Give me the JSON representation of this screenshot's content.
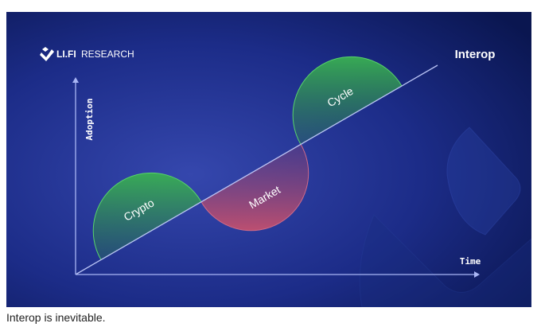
{
  "brand": {
    "logo_bold": "LI.FI",
    "logo_light": "RESEARCH"
  },
  "diagram": {
    "title": "Interop",
    "y_axis_label": "Adoption",
    "x_axis_label": "Time",
    "phases": [
      {
        "label": "Crypto",
        "color": "#3fae55"
      },
      {
        "label": "Market",
        "color": "#c4506e"
      },
      {
        "label": "Cycle",
        "color": "#3fae55"
      }
    ]
  },
  "caption": "Interop is inevitable.",
  "colors": {
    "background_light": "#3346a8",
    "background_dark": "#0a1650",
    "axis": "#a9b6f5"
  }
}
